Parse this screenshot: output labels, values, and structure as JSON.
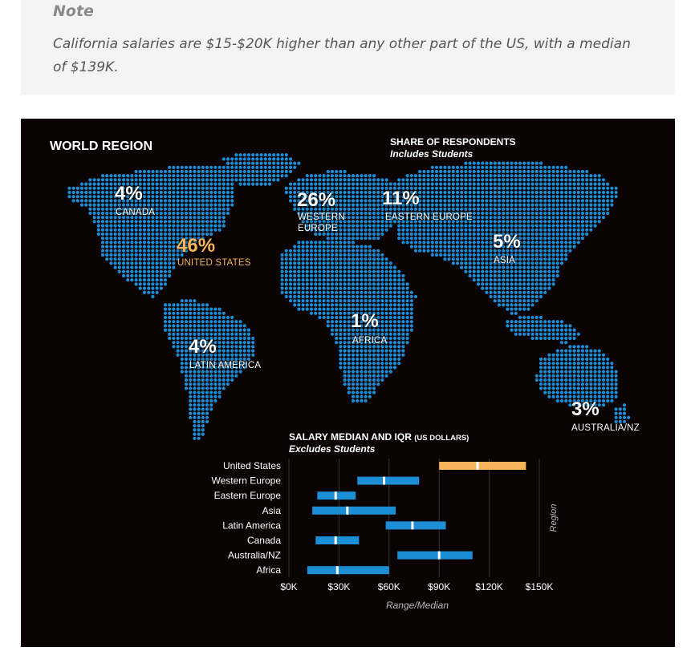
{
  "note": {
    "title": "Note",
    "text": "California salaries are $15-$20K higher than any other part of the US, with a median of $139K."
  },
  "map": {
    "title": "WORLD REGION",
    "share_title": "SHARE OF RESPONDENTS",
    "share_subtitle": "Includes Students",
    "regions": [
      {
        "pct": "4%",
        "name": "CANADA"
      },
      {
        "pct": "46%",
        "name": "UNITED STATES"
      },
      {
        "pct": "26%",
        "name_line1": "WESTERN",
        "name_line2": "EUROPE"
      },
      {
        "pct": "11%",
        "name": "EASTERN EUROPE"
      },
      {
        "pct": "5%",
        "name": "ASIA"
      },
      {
        "pct": "1%",
        "name": "AFRICA"
      },
      {
        "pct": "4%",
        "name": "LATIN AMERICA"
      },
      {
        "pct": "3%",
        "name": "AUSTRALIA/NZ"
      }
    ],
    "colors": {
      "dots": "#1c8ed6",
      "highlight": "#f6b55b",
      "background": "#0b0203"
    }
  },
  "chart_data": {
    "type": "bar",
    "title": "SALARY MEDIAN AND IQR",
    "title_unit": "(US DOLLARS)",
    "subtitle": "Excludes Students",
    "xlabel": "Range/Median",
    "ylabel": "Region",
    "xlim": [
      0,
      150000
    ],
    "xticks": [
      0,
      30000,
      60000,
      90000,
      120000,
      150000
    ],
    "xtick_labels": [
      "$0K",
      "$30K",
      "$60K",
      "$90K",
      "$120K",
      "$150K"
    ],
    "grid": true,
    "categories": [
      "United States",
      "Western Europe",
      "Eastern Europe",
      "Asia",
      "Latin America",
      "Canada",
      "Australia/NZ",
      "Africa"
    ],
    "series": [
      {
        "name": "Range",
        "values": [
          [
            90000,
            142000
          ],
          [
            41000,
            78000
          ],
          [
            17000,
            40000
          ],
          [
            14000,
            64000
          ],
          [
            58000,
            94000
          ],
          [
            16000,
            42000
          ],
          [
            65000,
            110000
          ],
          [
            11000,
            60000
          ]
        ]
      },
      {
        "name": "Median",
        "values": [
          113000,
          57000,
          28000,
          35000,
          74000,
          28000,
          90000,
          29000
        ]
      }
    ],
    "colors": {
      "default": "#1c8ed6",
      "highlight": "#f6b55b",
      "median": "#ffffff"
    },
    "highlight_category": "United States"
  }
}
